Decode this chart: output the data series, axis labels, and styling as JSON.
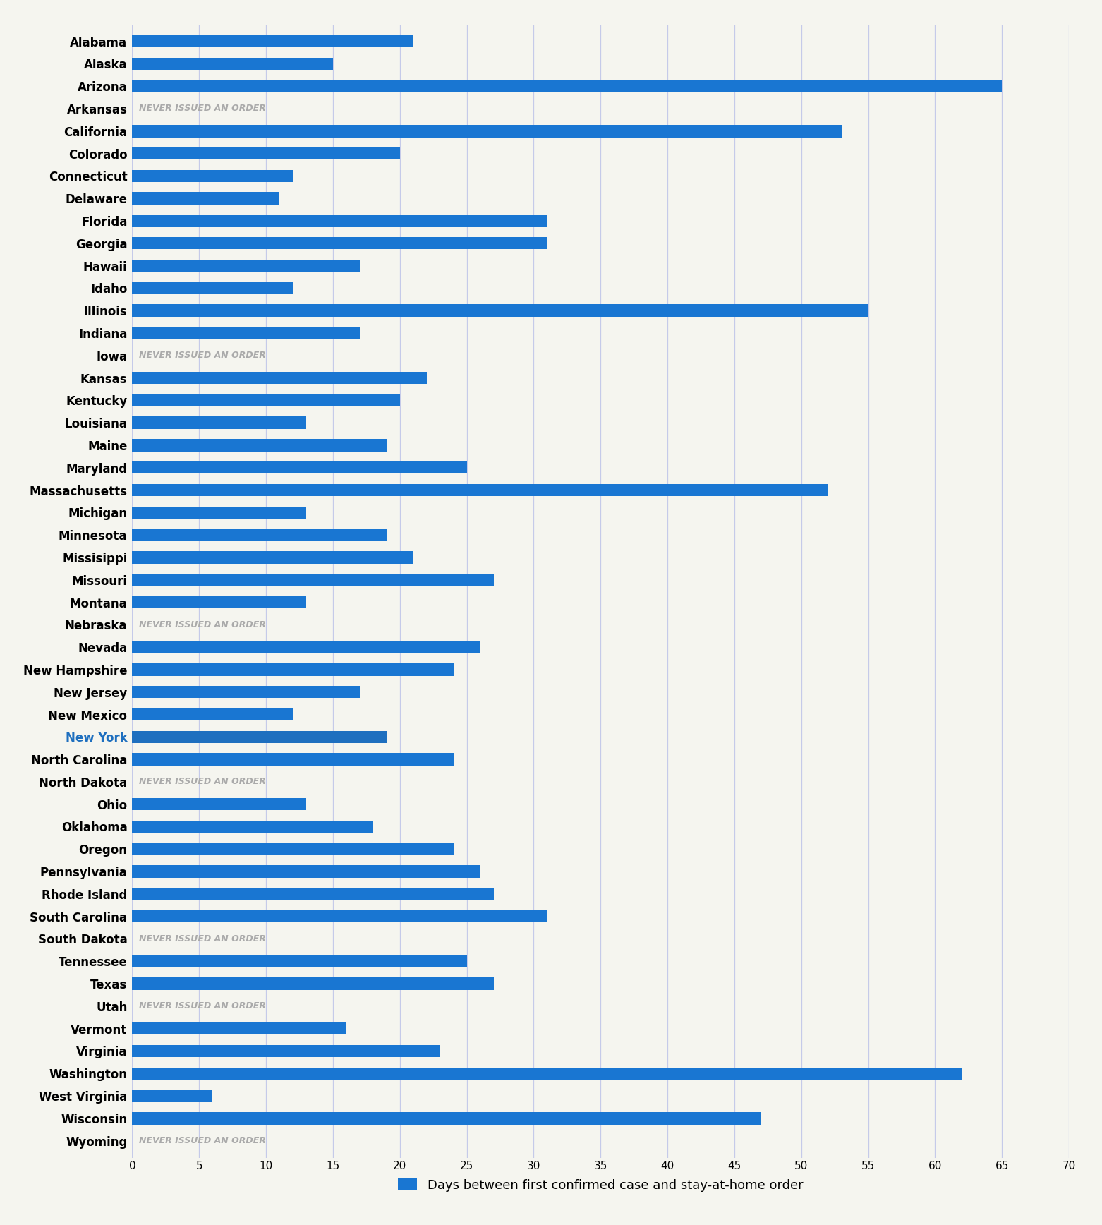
{
  "states": [
    "Alabama",
    "Alaska",
    "Arizona",
    "Arkansas",
    "California",
    "Colorado",
    "Connecticut",
    "Delaware",
    "Florida",
    "Georgia",
    "Hawaii",
    "Idaho",
    "Illinois",
    "Indiana",
    "Iowa",
    "Kansas",
    "Kentucky",
    "Louisiana",
    "Maine",
    "Maryland",
    "Massachusetts",
    "Michigan",
    "Minnesota",
    "Missisippi",
    "Missouri",
    "Montana",
    "Nebraska",
    "Nevada",
    "New Hampshire",
    "New Jersey",
    "New Mexico",
    "New York",
    "North Carolina",
    "North Dakota",
    "Ohio",
    "Oklahoma",
    "Oregon",
    "Pennsylvania",
    "Rhode Island",
    "South Carolina",
    "South Dakota",
    "Tennessee",
    "Texas",
    "Utah",
    "Vermont",
    "Virginia",
    "Washington",
    "West Virginia",
    "Wisconsin",
    "Wyoming"
  ],
  "values": [
    21,
    15,
    65,
    null,
    53,
    20,
    12,
    11,
    31,
    31,
    17,
    12,
    55,
    17,
    null,
    22,
    20,
    13,
    19,
    25,
    52,
    13,
    19,
    21,
    27,
    13,
    null,
    26,
    24,
    17,
    12,
    19,
    24,
    null,
    13,
    18,
    24,
    26,
    27,
    31,
    null,
    25,
    27,
    null,
    16,
    23,
    62,
    6,
    47,
    null
  ],
  "never_issued": [
    false,
    false,
    false,
    true,
    false,
    false,
    false,
    false,
    false,
    false,
    false,
    false,
    false,
    false,
    true,
    false,
    false,
    false,
    false,
    false,
    false,
    false,
    false,
    false,
    false,
    false,
    true,
    false,
    false,
    false,
    false,
    false,
    false,
    true,
    false,
    false,
    false,
    false,
    false,
    false,
    true,
    false,
    false,
    true,
    false,
    false,
    false,
    false,
    false,
    true
  ],
  "new_york_label_color": "#1E6FBF",
  "bar_color": "#1976D2",
  "never_issued_text_color": "#AAAAAA",
  "background_color": "#F5F5EF",
  "grid_color": "#C5CAE9",
  "legend_color": "#1976D2",
  "legend_label": "Days between first confirmed case and stay-at-home order",
  "xlim": [
    0,
    70
  ],
  "xticks": [
    0,
    5,
    10,
    15,
    20,
    25,
    30,
    35,
    40,
    45,
    50,
    55,
    60,
    65,
    70
  ],
  "label_fontsize": 12,
  "tick_fontsize": 11,
  "never_issued_fontsize": 9,
  "bar_height": 0.55,
  "figsize": [
    15.62,
    17.36
  ],
  "dpi": 100
}
